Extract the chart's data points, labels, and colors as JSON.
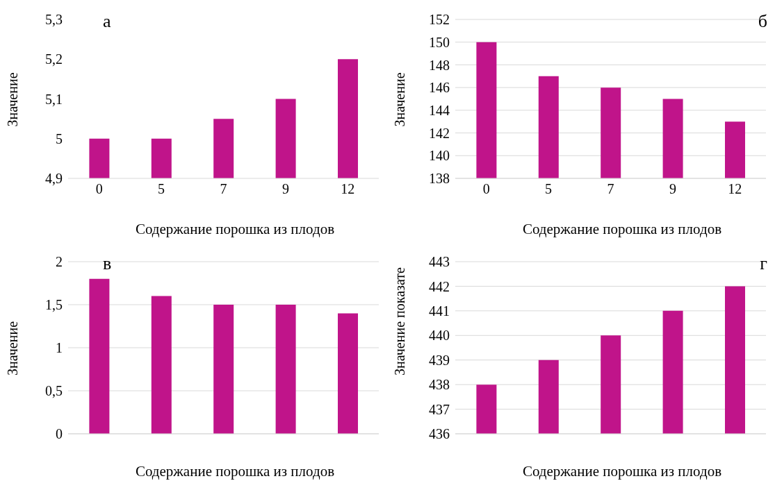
{
  "chart_data": [
    {
      "type": "bar",
      "title": "а",
      "xlabel": "Содержание порошка из плодов",
      "ylabel": "Значение",
      "categories": [
        "0",
        "5",
        "7",
        "9",
        "12"
      ],
      "values": [
        5,
        5,
        5.05,
        5.1,
        5.2
      ],
      "color": "#c0148a",
      "ylim": [
        4.9,
        5.3
      ],
      "yticks": [
        {
          "value": 4.9,
          "label": "4,9"
        },
        {
          "value": 5,
          "label": "5"
        },
        {
          "value": 5.1,
          "label": "5,1"
        },
        {
          "value": 5.2,
          "label": "5,2"
        },
        {
          "value": 5.3,
          "label": "5,3"
        }
      ],
      "grid": false
    },
    {
      "type": "bar",
      "title": "б",
      "xlabel": "Содержание порошка из плодов",
      "ylabel": "Значение",
      "categories": [
        "0",
        "5",
        "7",
        "9",
        "12"
      ],
      "values": [
        150,
        147,
        146,
        145,
        143
      ],
      "color": "#c0148a",
      "ylim": [
        138,
        152
      ],
      "yticks": [
        138,
        140,
        142,
        144,
        146,
        148,
        150,
        152
      ],
      "grid": "y"
    },
    {
      "type": "bar",
      "title": "в",
      "xlabel": "Содержание порошка из плодов",
      "ylabel": "Значение",
      "categories": [
        null,
        null,
        null,
        null,
        null
      ],
      "values": [
        1.8,
        1.6,
        1.5,
        1.5,
        1.4
      ],
      "color": "#c0148a",
      "ylim": [
        0,
        2
      ],
      "yticks": [
        0,
        {
          "value": 0.5,
          "label": "0,5"
        },
        1,
        {
          "value": 1.5,
          "label": "1,5"
        },
        2
      ],
      "grid": "y",
      "tick_labels": "y"
    },
    {
      "type": "bar",
      "title": "г",
      "xlabel": "Содержание порошка из плодов",
      "ylabel": "Значение  показате",
      "categories": [
        null,
        null,
        null,
        null,
        null
      ],
      "values": [
        438,
        439,
        440,
        441,
        442
      ],
      "color": "#c0148a",
      "ylim": [
        436,
        443
      ],
      "yticks": [
        436,
        437,
        438,
        439,
        440,
        441,
        442,
        443
      ],
      "grid": "y",
      "tick_labels": "y"
    }
  ]
}
